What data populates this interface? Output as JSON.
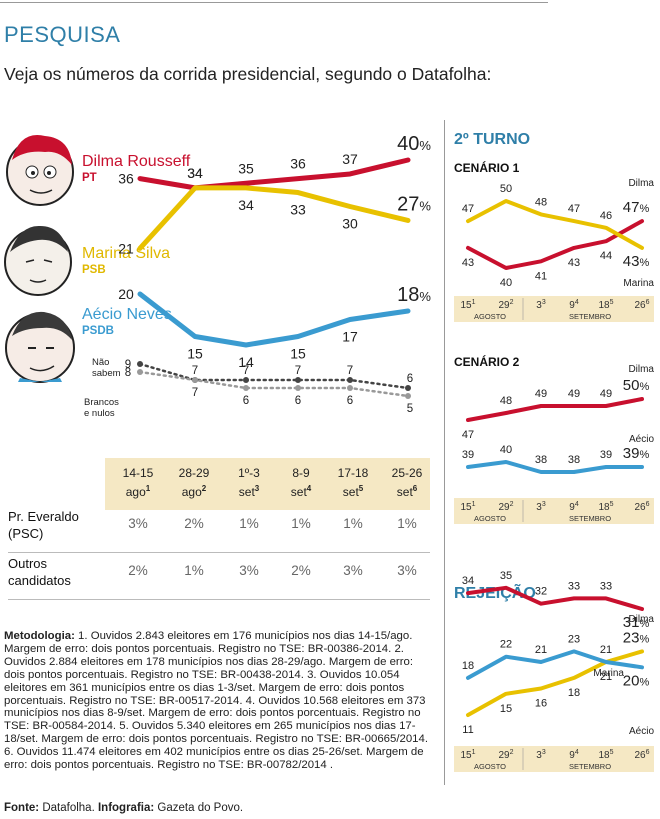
{
  "header": {
    "kicker": "PESQUISA",
    "subtitle": "Veja os números da corrida presidencial, segundo o Datafolha:"
  },
  "chart_data": [
    {
      "type": "line",
      "name": "primeiro-turno",
      "categories": [
        "14-15 ago",
        "28-29 ago",
        "1º-3 set",
        "8-9 set",
        "17-18 set",
        "25-26 set"
      ],
      "series": [
        {
          "name": "Dilma Rousseff",
          "party": "PT",
          "color": "#c8102e",
          "values": [
            36,
            34,
            35,
            36,
            37,
            40
          ]
        },
        {
          "name": "Marina Silva",
          "party": "PSB",
          "color": "#e8c100",
          "values": [
            21,
            34,
            34,
            33,
            30,
            27
          ]
        },
        {
          "name": "Aécio Neves",
          "party": "PSDB",
          "color": "#3a9bd0",
          "values": [
            20,
            15,
            14,
            15,
            17,
            18
          ]
        },
        {
          "name": "Não sabem",
          "color": "#444444",
          "values": [
            9,
            7,
            7,
            7,
            7,
            6
          ]
        },
        {
          "name": "Brancos e nulos",
          "color": "#999999",
          "values": [
            8,
            7,
            6,
            6,
            6,
            5
          ]
        }
      ],
      "label_text": {
        "nao_sabem": "Não sabem",
        "brancos": "Brancos e nulos"
      }
    },
    {
      "type": "line",
      "name": "segundo-turno-cenario-1",
      "title": "CENÁRIO 1",
      "series": [
        {
          "name": "Dilma",
          "color": "#c8102e",
          "values": [
            43,
            40,
            41,
            43,
            44,
            47
          ]
        },
        {
          "name": "Marina",
          "color": "#e8c100",
          "values": [
            47,
            50,
            48,
            47,
            46,
            43
          ]
        }
      ]
    },
    {
      "type": "line",
      "name": "segundo-turno-cenario-2",
      "title": "CENÁRIO 2",
      "series": [
        {
          "name": "Dilma",
          "color": "#c8102e",
          "values": [
            47,
            48,
            49,
            49,
            49,
            50
          ]
        },
        {
          "name": "Aécio",
          "color": "#3a9bd0",
          "values": [
            39,
            40,
            38,
            38,
            39,
            39
          ]
        }
      ]
    },
    {
      "type": "line",
      "name": "rejeicao",
      "title": "REJEIÇÃO",
      "series": [
        {
          "name": "Dilma",
          "color": "#c8102e",
          "values": [
            34,
            35,
            32,
            33,
            33,
            31
          ]
        },
        {
          "name": "Marina",
          "color": "#e8c100",
          "values": [
            11,
            15,
            16,
            18,
            21,
            23
          ]
        },
        {
          "name": "Aécio",
          "color": "#3a9bd0",
          "values": [
            18,
            22,
            21,
            23,
            21,
            20
          ]
        }
      ]
    }
  ],
  "right_panel": {
    "second_round_title": "2º TURNO",
    "rejection_title": "REJEIÇÃO",
    "scenario1": "CENÁRIO 1",
    "scenario2": "CENÁRIO 2",
    "axis_days": [
      "15",
      "29",
      "3",
      "9",
      "18",
      "26"
    ],
    "axis_sups": [
      "1",
      "2",
      "3",
      "4",
      "5",
      "6"
    ],
    "month_aug": "AGOSTO",
    "month_sep": "SETEMBRO"
  },
  "table": {
    "headers": [
      {
        "l1": "14-15",
        "l2": "ago",
        "sup": "1"
      },
      {
        "l1": "28-29",
        "l2": "ago",
        "sup": "2"
      },
      {
        "l1": "1º-3",
        "l2": "set",
        "sup": "3"
      },
      {
        "l1": "8-9",
        "l2": "set",
        "sup": "4"
      },
      {
        "l1": "17-18",
        "l2": "set",
        "sup": "5"
      },
      {
        "l1": "25-26",
        "l2": "set",
        "sup": "6"
      }
    ],
    "rows": [
      {
        "label1": "Pr. Everaldo",
        "label2": "(PSC)",
        "values": [
          "3%",
          "2%",
          "1%",
          "1%",
          "1%",
          "1%"
        ]
      },
      {
        "label1": "Outros",
        "label2": "candidatos",
        "values": [
          "2%",
          "1%",
          "3%",
          "2%",
          "3%",
          "3%"
        ]
      }
    ]
  },
  "methodology": {
    "label": "Metodologia:",
    "text": "1. Ouvidos 2.843 eleitores em 176 municípios nos dias 14-15/ago. Margem de erro: dois pontos porcentuais. Registro no TSE: BR-00386-2014. 2. Ouvidos 2.884 eleitores em 178 municípios nos dias 28-29/ago. Margem de erro: dois pontos porcentuais. Registro no TSE: BR-00438-2014. 3. Ouvidos 10.054 eleitores em 361 municípios entre os dias 1-3/set. Margem de erro: dois pontos porcentuais. Registro no TSE: BR-00517-2014. 4. Ouvidos 10.568 eleitores em 373 municípios nos dias 8-9/set. Margem de erro: dois pontos porcentuais. Registro no TSE: BR-00584-2014. 5. Ouvidos 5.340 eleitores em 265 municípios nos dias 17-18/set. Margem de erro: dois pontos porcentuais. Registro no TSE: BR-00665/2014. 6. Ouvidos 11.474 eleitores em 402 municípios entre os dias 25-26/set. Margem de erro: dois pontos porcentuais. Registro no TSE: BR-00782/2014 ."
  },
  "footer": {
    "source_label": "Fonte:",
    "source": "Datafolha.",
    "infographic_label": "Infografia:",
    "infographic": "Gazeta do Povo."
  }
}
